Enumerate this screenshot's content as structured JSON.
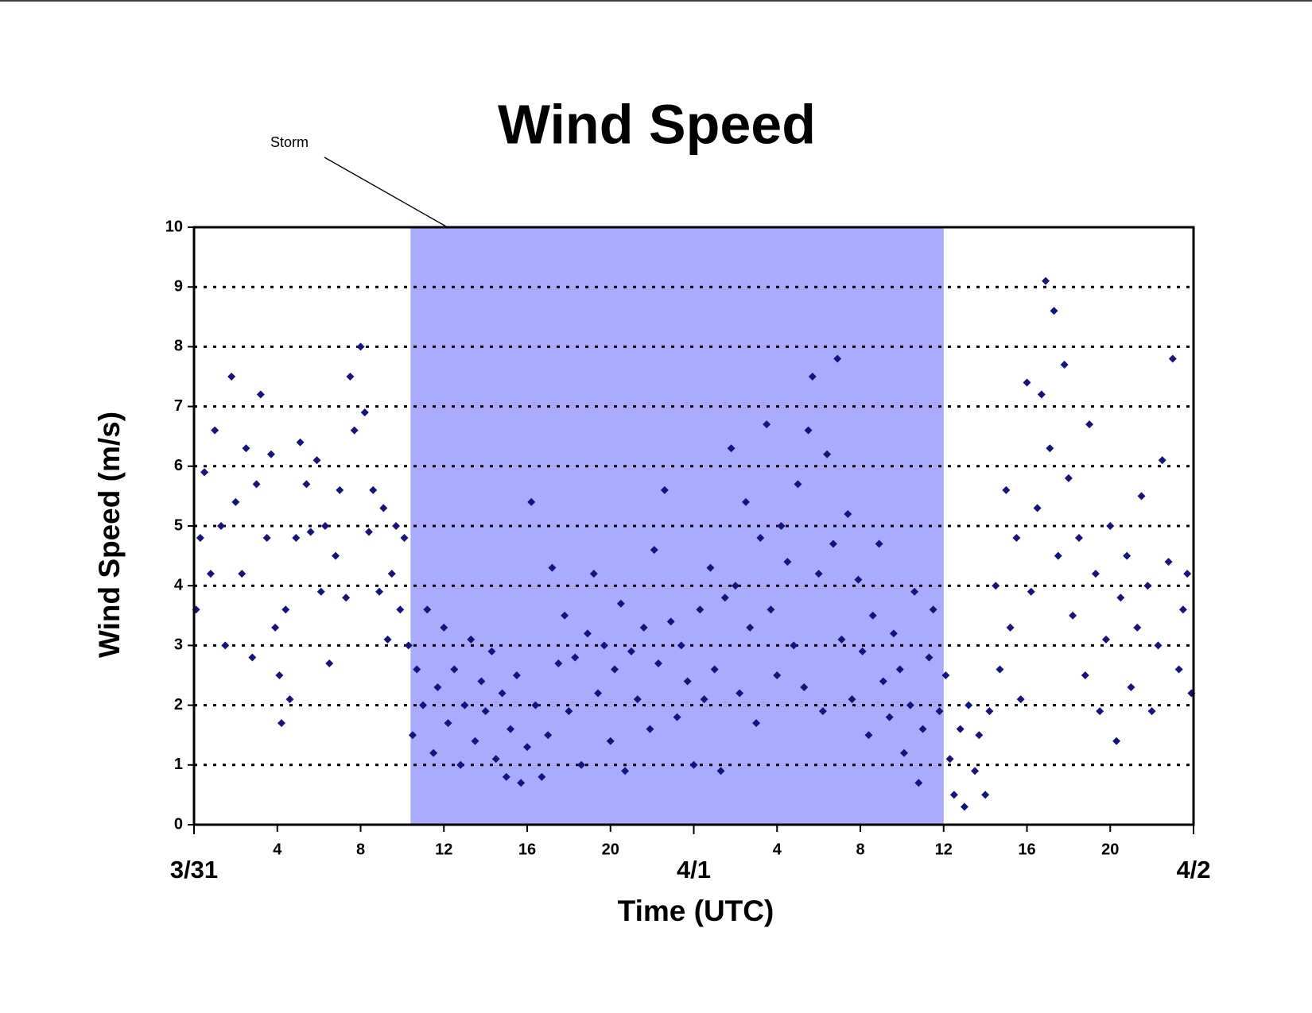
{
  "chart_data": {
    "type": "scatter",
    "title": "Wind Speed",
    "xlabel": "Time (UTC)",
    "ylabel": "Wind Speed (m/s)",
    "xlim": [
      0,
      48
    ],
    "ylim": [
      0,
      10
    ],
    "yticks": [
      0,
      1,
      2,
      3,
      4,
      5,
      6,
      7,
      8,
      9,
      10
    ],
    "grid": true,
    "xticks": [
      4,
      8,
      12,
      16,
      20,
      {
        "value": 28,
        "label": "4"
      },
      {
        "value": 32,
        "label": "8"
      },
      {
        "value": 36,
        "label": "12"
      },
      {
        "value": 40,
        "label": "16"
      },
      {
        "value": 44,
        "label": "20"
      }
    ],
    "date_ticks": [
      {
        "value": 0,
        "label": "3/31"
      },
      {
        "value": 24,
        "label": "4/1"
      },
      {
        "value": 48,
        "label": "4/2"
      }
    ],
    "storm": {
      "label": "Storm",
      "span": [
        10.4,
        36
      ],
      "color": "#aaaaff"
    },
    "x": [
      0.1,
      0.3,
      0.5,
      0.8,
      1.0,
      1.3,
      1.5,
      1.8,
      2.0,
      2.3,
      2.5,
      2.8,
      3.0,
      3.2,
      3.5,
      3.7,
      3.9,
      4.1,
      4.2,
      4.4,
      4.6,
      4.9,
      5.1,
      5.4,
      5.6,
      5.9,
      6.1,
      6.3,
      6.5,
      6.8,
      7.0,
      7.3,
      7.5,
      7.7,
      8.0,
      8.2,
      8.4,
      8.6,
      8.9,
      9.1,
      9.3,
      9.5,
      9.7,
      9.9,
      10.1,
      10.3,
      10.5,
      10.7,
      11.0,
      11.2,
      11.5,
      11.7,
      12.0,
      12.2,
      12.5,
      12.8,
      13.0,
      13.3,
      13.5,
      13.8,
      14.0,
      14.3,
      14.5,
      14.8,
      15.0,
      15.2,
      15.5,
      15.7,
      16.0,
      16.2,
      16.4,
      16.7,
      17.0,
      17.2,
      17.5,
      17.8,
      18.0,
      18.3,
      18.6,
      18.9,
      19.2,
      19.4,
      19.7,
      20.0,
      20.2,
      20.5,
      20.7,
      21.0,
      21.3,
      21.6,
      21.9,
      22.1,
      22.3,
      22.6,
      22.9,
      23.2,
      23.4,
      23.7,
      24.0,
      24.3,
      24.5,
      24.8,
      25.0,
      25.3,
      25.5,
      25.8,
      26.0,
      26.2,
      26.5,
      26.7,
      27.0,
      27.2,
      27.5,
      27.7,
      28.0,
      28.2,
      28.5,
      28.8,
      29.0,
      29.3,
      29.5,
      29.7,
      30.0,
      30.2,
      30.4,
      30.7,
      30.9,
      31.1,
      31.4,
      31.6,
      31.9,
      32.1,
      32.4,
      32.6,
      32.9,
      33.1,
      33.4,
      33.6,
      33.9,
      34.1,
      34.4,
      34.6,
      34.8,
      35.0,
      35.3,
      35.5,
      35.8,
      36.1,
      36.3,
      36.5,
      36.8,
      37.0,
      37.2,
      37.5,
      37.7,
      38.0,
      38.2,
      38.5,
      38.7,
      39.0,
      39.2,
      39.5,
      39.7,
      40.0,
      40.2,
      40.5,
      40.7,
      40.9,
      41.1,
      41.3,
      41.5,
      41.8,
      42.0,
      42.2,
      42.5,
      42.8,
      43.0,
      43.3,
      43.5,
      43.8,
      44.0,
      44.3,
      44.5,
      44.8,
      45.0,
      45.3,
      45.5,
      45.8,
      46.0,
      46.3,
      46.5,
      46.8,
      47.0,
      47.3,
      47.5,
      47.7,
      47.9
    ],
    "series": [
      {
        "color": "#14147f",
        "values": [
          3.6,
          4.8,
          5.9,
          4.2,
          6.6,
          5.0,
          3.0,
          7.5,
          5.4,
          4.2,
          6.3,
          2.8,
          5.7,
          7.2,
          4.8,
          6.2,
          3.3,
          2.5,
          1.7,
          3.6,
          2.1,
          4.8,
          6.4,
          5.7,
          4.9,
          6.1,
          3.9,
          5.0,
          2.7,
          4.5,
          5.6,
          3.8,
          7.5,
          6.6,
          8.0,
          6.9,
          4.9,
          5.6,
          3.9,
          5.3,
          3.1,
          4.2,
          5.0,
          3.6,
          4.8,
          3.0,
          1.5,
          2.6,
          2.0,
          3.6,
          1.2,
          2.3,
          3.3,
          1.7,
          2.6,
          1.0,
          2.0,
          3.1,
          1.4,
          2.4,
          1.9,
          2.9,
          1.1,
          2.2,
          0.8,
          1.6,
          2.5,
          0.7,
          1.3,
          5.4,
          2.0,
          0.8,
          1.5,
          4.3,
          2.7,
          3.5,
          1.9,
          2.8,
          1.0,
          3.2,
          4.2,
          2.2,
          3.0,
          1.4,
          2.6,
          3.7,
          0.9,
          2.9,
          2.1,
          3.3,
          1.6,
          4.6,
          2.7,
          5.6,
          3.4,
          1.8,
          3.0,
          2.4,
          1.0,
          3.6,
          2.1,
          4.3,
          2.6,
          0.9,
          3.8,
          6.3,
          4.0,
          2.2,
          5.4,
          3.3,
          1.7,
          4.8,
          6.7,
          3.6,
          2.5,
          5.0,
          4.4,
          3.0,
          5.7,
          2.3,
          6.6,
          7.5,
          4.2,
          1.9,
          6.2,
          4.7,
          7.8,
          3.1,
          5.2,
          2.1,
          4.1,
          2.9,
          1.5,
          3.5,
          4.7,
          2.4,
          1.8,
          3.2,
          2.6,
          1.2,
          2.0,
          3.9,
          0.7,
          1.6,
          2.8,
          3.6,
          1.9,
          2.5,
          1.1,
          0.5,
          1.6,
          0.3,
          2.0,
          0.9,
          1.5,
          0.5,
          1.9,
          4.0,
          2.6,
          5.6,
          3.3,
          4.8,
          2.1,
          7.4,
          3.9,
          5.3,
          7.2,
          9.1,
          6.3,
          8.6,
          4.5,
          7.7,
          5.8,
          3.5,
          4.8,
          2.5,
          6.7,
          4.2,
          1.9,
          3.1,
          5.0,
          1.4,
          3.8,
          4.5,
          2.3,
          3.3,
          5.5,
          4.0,
          1.9,
          3.0,
          6.1,
          4.4,
          7.8,
          2.6,
          3.6,
          4.2,
          2.2
        ]
      }
    ]
  }
}
